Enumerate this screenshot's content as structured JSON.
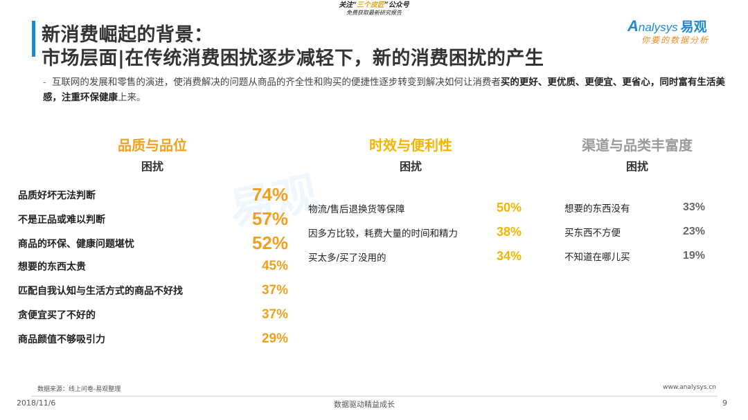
{
  "banner": {
    "line1_pre": "关注“",
    "line1_hl": "三个皮匠",
    "line1_post": "”公众号",
    "line2": "免费获取最新研究报告"
  },
  "title": {
    "line1": "新消费崛起的背景：",
    "line2": "市场层面|在传统消费困扰逐步减轻下，新的消费困扰的产生"
  },
  "logo": {
    "brand_a": "A",
    "brand_rest": "nalysys",
    "brand_cn": "易观",
    "tagline": "你要的数据分析"
  },
  "intro": {
    "dash": "-",
    "text_plain": "互联网的发展和零售的演进，使消费解决的问题从商品的齐全性和购买的便捷性逐步转变到解决如何让消费者",
    "text_bold": "买的更好、更优质、更便宜、更省心，同时富有生活美感，注重环保健康",
    "text_end": "上来。"
  },
  "watermark": "易观",
  "columns": [
    {
      "heading": "品质与品位",
      "sub": "困扰",
      "heading_color": "#f0a01e",
      "items": [
        {
          "label": "品质好坏无法判断",
          "value": "74%"
        },
        {
          "label": "不是正品或难以判断",
          "value": "57%"
        },
        {
          "label": "商品的环保、健康问题堪忧",
          "value": "52%"
        },
        {
          "label": "想要的东西太贵",
          "value": "45%"
        },
        {
          "label": "匹配自我认知与生活方式的商品不好找",
          "value": "37%"
        },
        {
          "label": "贪便宜买了不好的",
          "value": "37%"
        },
        {
          "label": "商品颜值不够吸引力",
          "value": "29%"
        }
      ]
    },
    {
      "heading": "时效与便利性",
      "sub": "困扰",
      "heading_color": "#f5b400",
      "items": [
        {
          "label": "物流/售后退换货等保障",
          "value": "50%"
        },
        {
          "label": "因多方比较，耗费大量的时间和精力",
          "value": "38%"
        },
        {
          "label": "买太多/买了没用的",
          "value": "34%"
        }
      ]
    },
    {
      "heading": "渠道与品类丰富度",
      "sub": "困扰",
      "heading_color": "#9a9a9a",
      "items": [
        {
          "label": "想要的东西没有",
          "value": "33%"
        },
        {
          "label": "买东西不方便",
          "value": "23%"
        },
        {
          "label": "不知道在哪儿买",
          "value": "19%"
        }
      ]
    }
  ],
  "colors": {
    "accent_blue": "#1b8ad3",
    "value_orange": "#f0a01e",
    "value_yellow": "#f5b400",
    "value_grey": "#666666"
  },
  "footer": {
    "source": "数据来源：线上问卷-易观整理",
    "url": "www.analysys.cn",
    "date": "2018/11/6",
    "slogan": "数据驱动精益成长",
    "page": "9"
  }
}
